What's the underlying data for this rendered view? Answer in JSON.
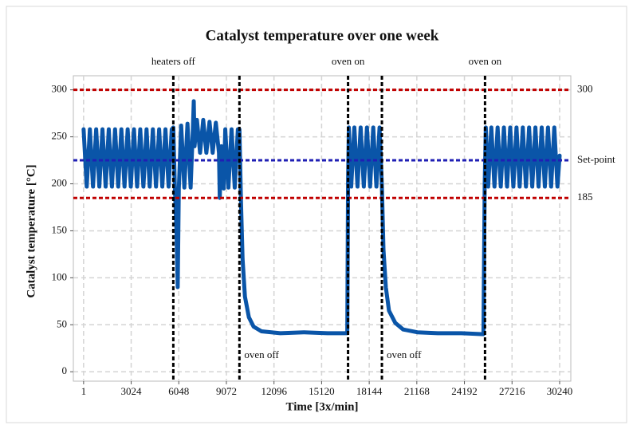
{
  "chart_data": {
    "type": "line",
    "title": "Catalyst temperature over one week",
    "xlabel": "Time [3x/min]",
    "ylabel": "Catalyst temperature [°C]",
    "xlim": [
      -650,
      30950
    ],
    "ylim": [
      -10,
      315
    ],
    "xticks": [
      1,
      3024,
      6048,
      9072,
      12096,
      15120,
      18144,
      21168,
      24192,
      27216,
      30240
    ],
    "yticks": [
      0,
      50,
      100,
      150,
      200,
      250,
      300
    ],
    "grid": true,
    "hlines": [
      {
        "y": 300,
        "color": "#c00000"
      },
      {
        "y": 225,
        "label": "Set-point",
        "color": "#1f1fb4"
      },
      {
        "y": 185,
        "color": "#c00000"
      }
    ],
    "vlines": [
      {
        "x": 5700,
        "label": "heaters off",
        "label_position": "top"
      },
      {
        "x": 9900,
        "label": "oven off",
        "label_position": "bottom"
      },
      {
        "x": 16800,
        "label": "oven on",
        "label_position": "top"
      },
      {
        "x": 18950,
        "label": "oven off",
        "label_position": "bottom"
      },
      {
        "x": 25500,
        "label": "oven on",
        "label_position": "top"
      }
    ],
    "series": [
      {
        "color": "#0a55a8",
        "x": [
          1,
          200,
          400,
          600,
          800,
          1000,
          1200,
          1400,
          1600,
          1800,
          2000,
          2200,
          2400,
          2600,
          2800,
          3000,
          3200,
          3400,
          3600,
          3800,
          4000,
          4200,
          4400,
          4600,
          4800,
          5000,
          5200,
          5400,
          5600,
          5700,
          5800,
          5900,
          5980,
          6050,
          6200,
          6400,
          6600,
          6800,
          6950,
          7000,
          7050,
          7200,
          7400,
          7600,
          7800,
          8000,
          8200,
          8400,
          8600,
          8650,
          8750,
          8900,
          9000,
          9200,
          9400,
          9600,
          9800,
          9900,
          10000,
          10100,
          10250,
          10500,
          10800,
          11300,
          12500,
          14000,
          15500,
          16750,
          16800,
          16850,
          17000,
          17200,
          17400,
          17600,
          17800,
          18000,
          18200,
          18400,
          18600,
          18800,
          18950,
          19050,
          19200,
          19400,
          19800,
          20300,
          21200,
          22500,
          24000,
          25400,
          25480,
          25550,
          25700,
          25900,
          26100,
          26300,
          26500,
          26700,
          26900,
          27100,
          27300,
          27500,
          27700,
          27900,
          28100,
          28300,
          28500,
          28700,
          28900,
          29100,
          29300,
          29500,
          29700,
          29900,
          30100,
          30240
        ],
        "values": [
          258,
          197,
          258,
          197,
          258,
          197,
          258,
          197,
          258,
          197,
          258,
          197,
          258,
          197,
          258,
          197,
          258,
          197,
          258,
          197,
          258,
          197,
          258,
          197,
          258,
          197,
          258,
          197,
          258,
          260,
          195,
          150,
          90,
          195,
          262,
          196,
          264,
          196,
          262,
          288,
          240,
          268,
          233,
          268,
          233,
          266,
          233,
          265,
          233,
          185,
          240,
          195,
          258,
          196,
          258,
          196,
          258,
          258,
          180,
          120,
          80,
          58,
          48,
          43,
          41,
          42,
          41,
          41,
          200,
          260,
          197,
          260,
          197,
          260,
          197,
          260,
          197,
          260,
          197,
          260,
          197,
          130,
          90,
          65,
          52,
          45,
          42,
          41,
          41,
          40,
          200,
          260,
          197,
          260,
          197,
          260,
          197,
          260,
          197,
          260,
          197,
          260,
          197,
          260,
          197,
          260,
          197,
          260,
          197,
          260,
          197,
          260,
          197,
          260,
          197,
          230
        ]
      }
    ]
  }
}
